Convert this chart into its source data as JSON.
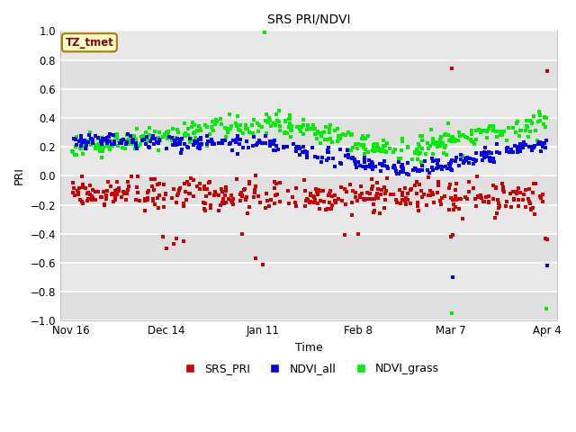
{
  "title": "SRS PRI/NDVI",
  "xlabel": "Time",
  "ylabel": "PRI",
  "ylim": [
    -1.0,
    1.0
  ],
  "yticks": [
    -1.0,
    -0.8,
    -0.6,
    -0.4,
    -0.2,
    0.0,
    0.2,
    0.4,
    0.6,
    0.8,
    1.0
  ],
  "plot_bg_color": "#e8e8e8",
  "fig_bg_color": "#ffffff",
  "legend_label": "TZ_tmet",
  "series": {
    "SRS_PRI": {
      "color": "#cc0000",
      "label": "SRS_PRI"
    },
    "NDVI_all": {
      "color": "#0000ee",
      "label": "NDVI_all"
    },
    "NDVI_grass": {
      "color": "#00ee00",
      "label": "NDVI_grass"
    }
  },
  "xtick_labels": [
    "Nov 16",
    "Dec 14",
    "Jan 11",
    "Feb 8",
    "Mar 7",
    "Apr 4"
  ],
  "xtick_positions": [
    0,
    28,
    56,
    84,
    111,
    139
  ],
  "band_colors": [
    "#e0e0e0",
    "#e8e8e8"
  ],
  "grid_color": "#ffffff"
}
